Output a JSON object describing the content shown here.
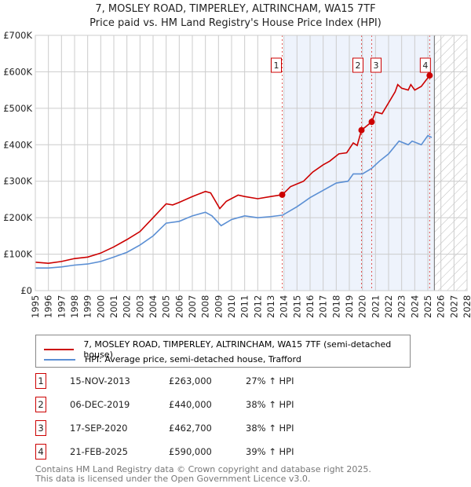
{
  "title": "7, MOSLEY ROAD, TIMPERLEY, ALTRINCHAM, WA15 7TF",
  "subtitle": "Price paid vs. HM Land Registry's House Price Index (HPI)",
  "chart_data": {
    "type": "line",
    "xlim": [
      1995,
      2028
    ],
    "ylim": [
      0,
      700000
    ],
    "yticks": [
      {
        "v": 0,
        "label": "£0"
      },
      {
        "v": 100000,
        "label": "£100K"
      },
      {
        "v": 200000,
        "label": "£200K"
      },
      {
        "v": 300000,
        "label": "£300K"
      },
      {
        "v": 400000,
        "label": "£400K"
      },
      {
        "v": 500000,
        "label": "£500K"
      },
      {
        "v": 600000,
        "label": "£600K"
      },
      {
        "v": 700000,
        "label": "£700K"
      }
    ],
    "xticks": [
      "1995",
      "1996",
      "1997",
      "1998",
      "1999",
      "2000",
      "2001",
      "2002",
      "2003",
      "2004",
      "2005",
      "2006",
      "2007",
      "2008",
      "2009",
      "2010",
      "2011",
      "2012",
      "2013",
      "2014",
      "2015",
      "2016",
      "2017",
      "2018",
      "2019",
      "2020",
      "2021",
      "2022",
      "2023",
      "2024",
      "2025",
      "2026",
      "2027",
      "2028"
    ],
    "shaded_range": [
      2014,
      2025.5
    ],
    "forecast_hatch_from": 2025.5,
    "series": [
      {
        "name": "7, MOSLEY ROAD, TIMPERLEY, ALTRINCHAM, WA15 7TF (semi-detached house)",
        "color": "#cc0000",
        "x": [
          1995,
          1996,
          1997,
          1998,
          1999,
          2000,
          2001,
          2002,
          2003,
          2004,
          2005,
          2005.5,
          2006,
          2007,
          2008,
          2008.4,
          2009.1,
          2009.6,
          2010.5,
          2011,
          2012,
          2013,
          2013.88,
          2014.5,
          2015.5,
          2016.2,
          2017,
          2017.5,
          2018.2,
          2018.8,
          2019.3,
          2019.6,
          2019.93,
          2020.71,
          2021,
          2021.5,
          2022.5,
          2022.7,
          2023,
          2023.5,
          2023.7,
          2024,
          2024.5,
          2025.14,
          2025.3
        ],
        "y": [
          78000,
          75000,
          80000,
          88000,
          92000,
          103000,
          120000,
          140000,
          162000,
          200000,
          238000,
          235000,
          242000,
          258000,
          272000,
          268000,
          225000,
          245000,
          262000,
          258000,
          252000,
          258000,
          263000,
          285000,
          300000,
          325000,
          345000,
          355000,
          375000,
          378000,
          405000,
          398000,
          440000,
          462700,
          490000,
          485000,
          545000,
          565000,
          555000,
          550000,
          565000,
          550000,
          560000,
          590000,
          585000
        ]
      },
      {
        "name": "HPI: Average price, semi-detached house, Trafford",
        "color": "#5b8fd4",
        "x": [
          1995,
          1996,
          1997,
          1998,
          1999,
          2000,
          2001,
          2002,
          2003,
          2004,
          2005,
          2006,
          2007,
          2008,
          2008.5,
          2009.2,
          2010,
          2011,
          2012,
          2013,
          2013.9,
          2015,
          2016,
          2017,
          2018,
          2018.9,
          2019.3,
          2020,
          2020.7,
          2021.3,
          2022,
          2022.8,
          2023.5,
          2023.8,
          2024.5,
          2025,
          2025.3
        ],
        "y": [
          62000,
          62000,
          65000,
          70000,
          73000,
          80000,
          92000,
          105000,
          125000,
          150000,
          185000,
          190000,
          205000,
          215000,
          205000,
          178000,
          195000,
          205000,
          200000,
          203000,
          207000,
          230000,
          255000,
          275000,
          295000,
          300000,
          320000,
          320000,
          335000,
          355000,
          375000,
          410000,
          400000,
          410000,
          400000,
          425000,
          420000
        ]
      }
    ],
    "sales": [
      {
        "n": "1",
        "x": 2013.87,
        "y": 263000
      },
      {
        "n": "2",
        "x": 2019.93,
        "y": 440000
      },
      {
        "n": "3",
        "x": 2020.71,
        "y": 462700
      },
      {
        "n": "4",
        "x": 2025.14,
        "y": 590000
      }
    ]
  },
  "legend": {
    "red": "7, MOSLEY ROAD, TIMPERLEY, ALTRINCHAM, WA15 7TF (semi-detached house)",
    "blue": "HPI: Average price, semi-detached house, Trafford"
  },
  "table": [
    {
      "n": "1",
      "date": "15-NOV-2013",
      "price": "£263,000",
      "hpi": "27% ↑ HPI"
    },
    {
      "n": "2",
      "date": "06-DEC-2019",
      "price": "£440,000",
      "hpi": "38% ↑ HPI"
    },
    {
      "n": "3",
      "date": "17-SEP-2020",
      "price": "£462,700",
      "hpi": "38% ↑ HPI"
    },
    {
      "n": "4",
      "date": "21-FEB-2025",
      "price": "£590,000",
      "hpi": "39% ↑ HPI"
    }
  ],
  "footer": {
    "line1": "Contains HM Land Registry data © Crown copyright and database right 2025.",
    "line2": "This data is licensed under the Open Government Licence v3.0."
  }
}
